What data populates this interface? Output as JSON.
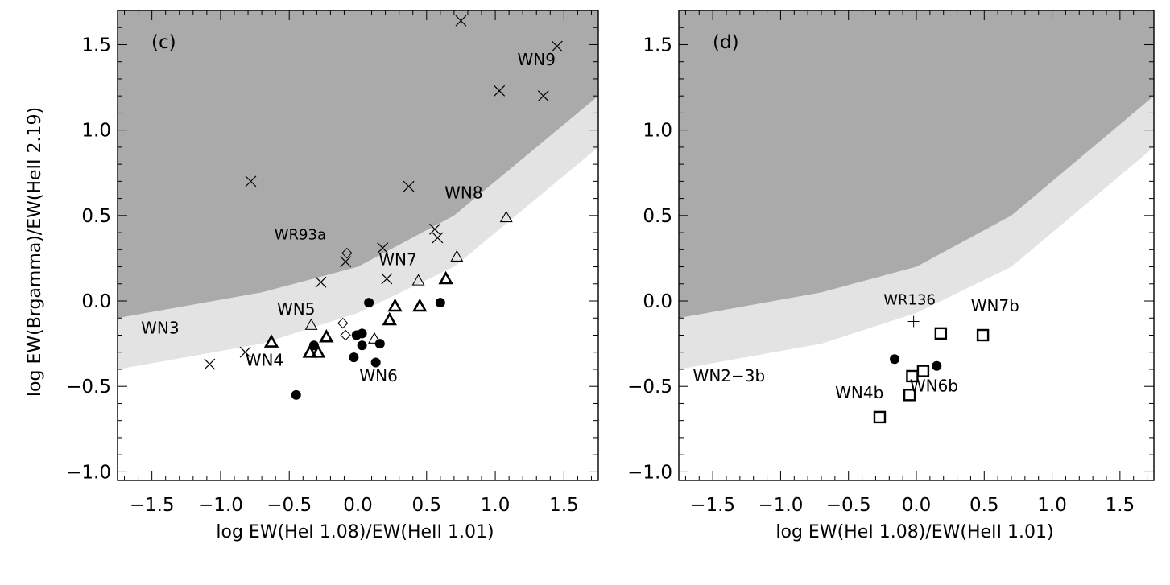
{
  "chart_data": [
    {
      "type": "scatter",
      "panel_label": "(c)",
      "xlabel": "log EW(HeI 1.08)/EW(HeII 1.01)",
      "ylabel": "log EW(Brgamma)/EW(HeII 2.19)",
      "xlim": [
        -1.75,
        1.75
      ],
      "ylim": [
        -1.05,
        1.7
      ],
      "xticks": [
        -1.5,
        -1.0,
        -0.5,
        0.0,
        0.5,
        1.0,
        1.5
      ],
      "yticks": [
        -1.0,
        -0.5,
        0.0,
        0.5,
        1.0,
        1.5
      ],
      "xtick_labels": [
        "−1.5",
        "−1.0",
        "−0.5",
        "0.0",
        "0.5",
        "1.0",
        "1.5"
      ],
      "ytick_labels": [
        "−1.0",
        "−0.5",
        "0.0",
        "0.5",
        "1.0",
        "1.5"
      ],
      "regions": [
        {
          "shade": "dark",
          "color": "#aaaaaa",
          "boundary_x": [
            -1.75,
            -0.7,
            0.0,
            0.7,
            1.75
          ],
          "boundary_y": [
            -0.1,
            0.05,
            0.2,
            0.5,
            1.2
          ]
        },
        {
          "shade": "light",
          "color": "#e3e3e3",
          "boundary_x": [
            -1.75,
            -0.7,
            0.0,
            0.7,
            1.75
          ],
          "boundary_y": [
            -0.4,
            -0.25,
            -0.07,
            0.2,
            0.9
          ]
        }
      ],
      "series": [
        {
          "marker": "x",
          "points": [
            [
              -1.08,
              -0.37
            ],
            [
              -0.82,
              -0.3
            ],
            [
              -0.78,
              0.7
            ],
            [
              -0.27,
              0.11
            ],
            [
              -0.09,
              0.23
            ],
            [
              0.18,
              0.31
            ],
            [
              0.21,
              0.13
            ],
            [
              0.37,
              0.67
            ],
            [
              0.56,
              0.42
            ],
            [
              0.58,
              0.37
            ],
            [
              0.75,
              1.64
            ],
            [
              1.03,
              1.23
            ],
            [
              1.35,
              1.2
            ],
            [
              1.45,
              1.49
            ]
          ]
        },
        {
          "marker": "diamond",
          "points": [
            [
              -0.08,
              0.28
            ],
            [
              -0.11,
              -0.13
            ],
            [
              -0.09,
              -0.2
            ]
          ]
        },
        {
          "marker": "triangle-thin",
          "points": [
            [
              -0.34,
              -0.14
            ],
            [
              0.12,
              -0.22
            ],
            [
              0.44,
              0.12
            ],
            [
              0.72,
              0.26
            ],
            [
              1.08,
              0.49
            ]
          ]
        },
        {
          "marker": "triangle-bold",
          "points": [
            [
              -0.63,
              -0.24
            ],
            [
              -0.35,
              -0.3
            ],
            [
              -0.29,
              -0.3
            ],
            [
              -0.23,
              -0.21
            ],
            [
              0.23,
              -0.11
            ],
            [
              0.27,
              -0.03
            ],
            [
              0.45,
              -0.03
            ],
            [
              0.64,
              0.13
            ]
          ]
        },
        {
          "marker": "filled-circle",
          "points": [
            [
              -0.45,
              -0.55
            ],
            [
              -0.32,
              -0.26
            ],
            [
              -0.03,
              -0.33
            ],
            [
              -0.01,
              -0.2
            ],
            [
              0.03,
              -0.19
            ],
            [
              0.03,
              -0.26
            ],
            [
              0.08,
              -0.01
            ],
            [
              0.13,
              -0.36
            ],
            [
              0.16,
              -0.25
            ],
            [
              0.6,
              -0.01
            ]
          ]
        }
      ],
      "annotations": [
        {
          "text": "WN9",
          "x": 1.3,
          "y": 1.38
        },
        {
          "text": "WN8",
          "x": 0.77,
          "y": 0.6
        },
        {
          "text": "WR93a",
          "x": -0.42,
          "y": 0.36
        },
        {
          "text": "WN7",
          "x": 0.29,
          "y": 0.21
        },
        {
          "text": "WN5",
          "x": -0.45,
          "y": -0.08
        },
        {
          "text": "WN3",
          "x": -1.44,
          "y": -0.19
        },
        {
          "text": "WN4",
          "x": -0.68,
          "y": -0.38
        },
        {
          "text": "WN6",
          "x": 0.15,
          "y": -0.47
        }
      ]
    },
    {
      "type": "scatter",
      "panel_label": "(d)",
      "xlabel": "log EW(HeI 1.08)/EW(HeII 1.01)",
      "ylabel": "",
      "xlim": [
        -1.75,
        1.75
      ],
      "ylim": [
        -1.05,
        1.7
      ],
      "xticks": [
        -1.5,
        -1.0,
        -0.5,
        0.0,
        0.5,
        1.0,
        1.5
      ],
      "yticks": [
        -1.0,
        -0.5,
        0.0,
        0.5,
        1.0,
        1.5
      ],
      "xtick_labels": [
        "−1.5",
        "−1.0",
        "−0.5",
        "0.0",
        "0.5",
        "1.0",
        "1.5"
      ],
      "ytick_labels": [
        "−1.0",
        "−0.5",
        "0.0",
        "0.5",
        "1.0",
        "1.5"
      ],
      "regions": [
        {
          "shade": "dark",
          "color": "#aaaaaa",
          "boundary_x": [
            -1.75,
            -0.7,
            0.0,
            0.7,
            1.75
          ],
          "boundary_y": [
            -0.1,
            0.05,
            0.2,
            0.5,
            1.2
          ]
        },
        {
          "shade": "light",
          "color": "#e3e3e3",
          "boundary_x": [
            -1.75,
            -0.7,
            0.0,
            0.7,
            1.75
          ],
          "boundary_y": [
            -0.4,
            -0.25,
            -0.07,
            0.2,
            0.9
          ]
        }
      ],
      "series": [
        {
          "marker": "plus",
          "points": [
            [
              -0.02,
              -0.12
            ]
          ]
        },
        {
          "marker": "open-square",
          "points": [
            [
              -0.27,
              -0.68
            ],
            [
              -0.05,
              -0.55
            ],
            [
              -0.03,
              -0.44
            ],
            [
              0.05,
              -0.41
            ],
            [
              0.18,
              -0.19
            ],
            [
              0.49,
              -0.2
            ]
          ]
        },
        {
          "marker": "filled-circle",
          "points": [
            [
              -0.16,
              -0.34
            ],
            [
              0.15,
              -0.38
            ]
          ]
        }
      ],
      "annotations": [
        {
          "text": "WR136",
          "x": -0.05,
          "y": -0.02
        },
        {
          "text": "WN7b",
          "x": 0.58,
          "y": -0.06
        },
        {
          "text": "WN2−3b",
          "x": -1.38,
          "y": -0.47
        },
        {
          "text": "WN4b",
          "x": -0.42,
          "y": -0.57
        },
        {
          "text": "WN6b",
          "x": 0.13,
          "y": -0.53
        }
      ]
    }
  ]
}
